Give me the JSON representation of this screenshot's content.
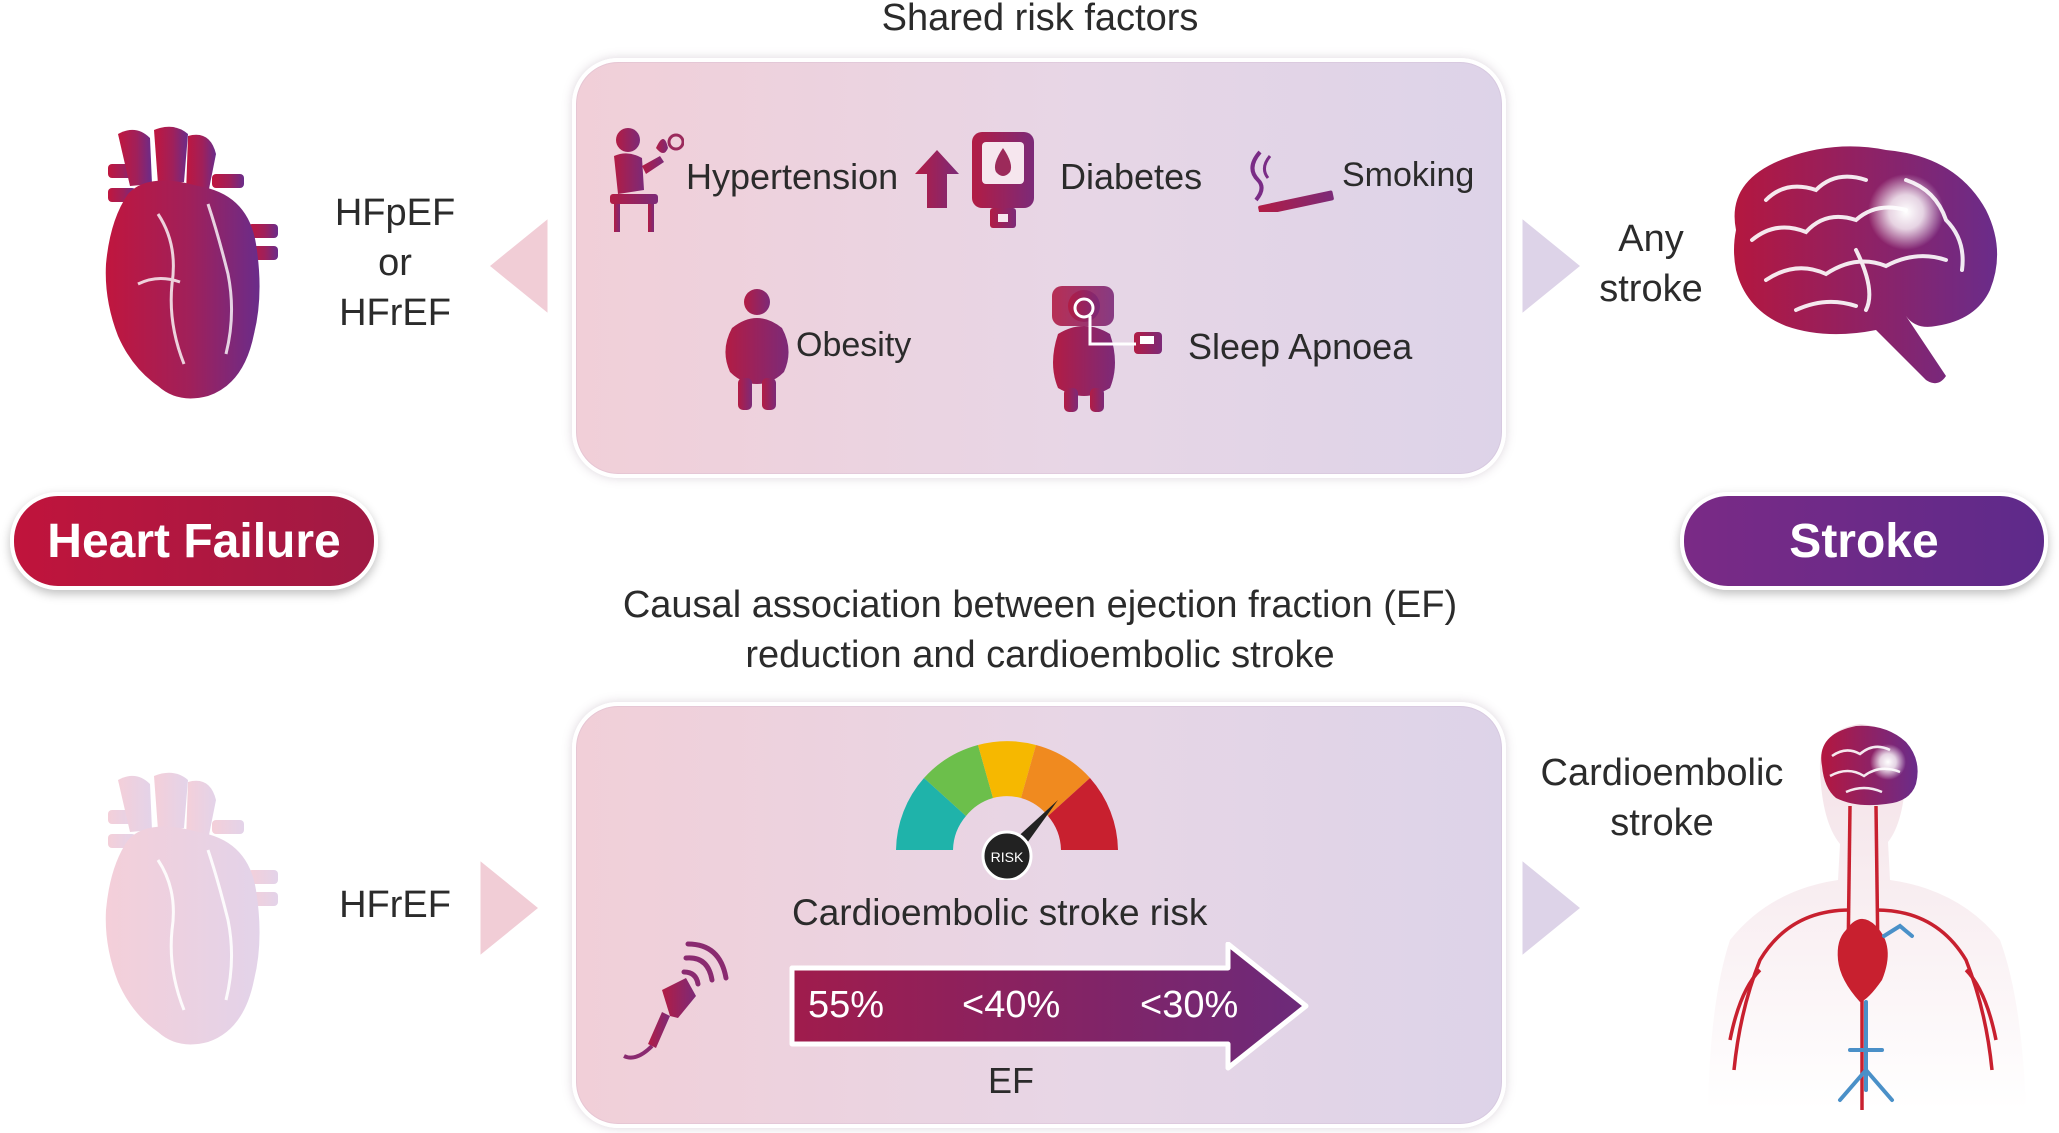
{
  "top": {
    "heading": "Shared risk factors",
    "risk_factors": {
      "hypertension": "Hypertension",
      "diabetes": "Diabetes",
      "smoking": "Smoking",
      "obesity": "Obesity",
      "sleep_apnoea": "Sleep Apnoea"
    },
    "left_label_1": "HFpEF",
    "left_label_2": "or",
    "left_label_3": "HFrEF",
    "right_label_1": "Any",
    "right_label_2": "stroke"
  },
  "pills": {
    "heart_failure": "Heart Failure",
    "stroke": "Stroke",
    "heart_failure_color": "#b0173e",
    "stroke_color": "#6a2a8a"
  },
  "bottom": {
    "heading_line1": "Causal association between ejection fraction (EF)",
    "heading_line2": "reduction and cardioembolic stroke",
    "left_label": "HFrEF",
    "right_label_1": "Cardioembolic",
    "right_label_2": "stroke",
    "gauge_label": "RISK",
    "risk_title": "Cardioembolic stroke risk",
    "ef_values": [
      "55%",
      "<40%",
      "<30%"
    ],
    "ef_axis_label": "EF"
  },
  "icons": {
    "heart": "heart-icon",
    "brain": "brain-icon",
    "body": "human-circulation-icon",
    "gauge": "risk-gauge-icon",
    "probe": "ultrasound-probe-icon"
  }
}
